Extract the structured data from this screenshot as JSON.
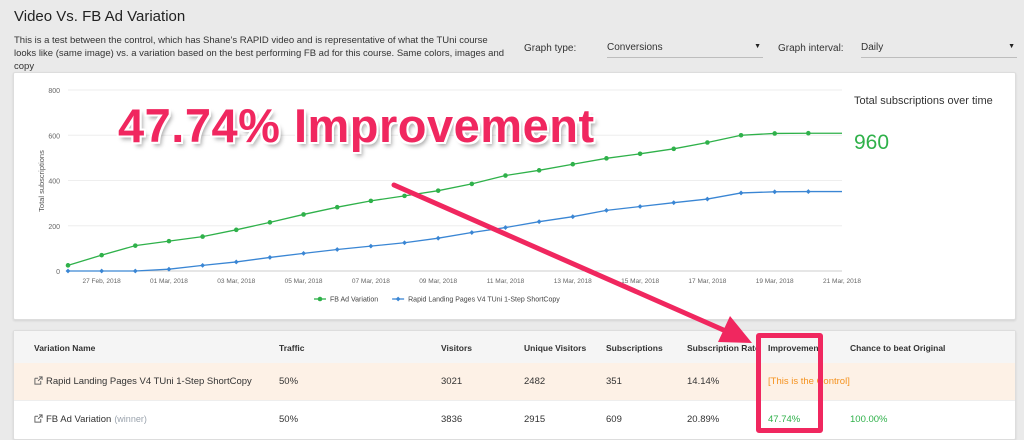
{
  "page": {
    "title": "Video Vs. FB Ad Variation",
    "description": "This is a test between the control, which has Shane's RAPID video and is representative of what the TUni course looks like (same image) vs. a variation based on the best performing FB ad for this course. Same colors, images and copy"
  },
  "controls": {
    "graph_type_label": "Graph type:",
    "graph_type_value": "Conversions",
    "graph_interval_label": "Graph interval:",
    "graph_interval_value": "Daily"
  },
  "side_panel": {
    "title": "Total subscriptions over time",
    "value": "960"
  },
  "annotation": {
    "headline": "47.74% Improvement"
  },
  "colors": {
    "green": "#2fb14a",
    "blue": "#3a86d4",
    "accent": "#f0275f",
    "orange": "#f5921e"
  },
  "chart_data": {
    "type": "line",
    "ylabel": "Total subscriptions",
    "ylim": [
      0,
      800
    ],
    "yticks": [
      0,
      200,
      400,
      600,
      800
    ],
    "x": [
      "26 Feb",
      "27 Feb",
      "28 Feb",
      "01 Mar",
      "02 Mar",
      "03 Mar",
      "04 Mar",
      "05 Mar",
      "06 Mar",
      "07 Mar",
      "08 Mar",
      "09 Mar",
      "10 Mar",
      "11 Mar",
      "12 Mar",
      "13 Mar",
      "14 Mar",
      "15 Mar",
      "16 Mar",
      "17 Mar",
      "18 Mar",
      "19 Mar",
      "20 Mar",
      "21 Mar"
    ],
    "xtick_labels": [
      "27 Feb, 2018",
      "01 Mar, 2018",
      "03 Mar, 2018",
      "05 Mar, 2018",
      "07 Mar, 2018",
      "09 Mar, 2018",
      "11 Mar, 2018",
      "13 Mar, 2018",
      "15 Mar, 2018",
      "17 Mar, 2018",
      "19 Mar, 2018",
      "21 Mar, 2018"
    ],
    "xtick_index": [
      1,
      3,
      5,
      7,
      9,
      11,
      13,
      15,
      17,
      19,
      21,
      23
    ],
    "series": [
      {
        "name": "FB Ad Variation",
        "color": "#2fb14a",
        "values": [
          25,
          70,
          112,
          132,
          152,
          182,
          215,
          250,
          282,
          310,
          332,
          355,
          385,
          422,
          445,
          472,
          498,
          518,
          540,
          568,
          600,
          608,
          609,
          609
        ]
      },
      {
        "name": "Rapid Landing Pages V4 TUni 1-Step ShortCopy",
        "color": "#3a86d4",
        "values": [
          0,
          0,
          0,
          8,
          25,
          40,
          60,
          78,
          95,
          110,
          125,
          145,
          170,
          192,
          218,
          240,
          268,
          285,
          302,
          318,
          345,
          350,
          351,
          351
        ]
      }
    ],
    "legend_position": "bottom"
  },
  "table": {
    "headers": [
      "Variation Name",
      "Traffic",
      "Visitors",
      "Unique Visitors",
      "Subscriptions",
      "Subscription Rate",
      "Improvement",
      "Chance to beat Original"
    ],
    "rows": [
      {
        "name": "Rapid Landing Pages V4 TUni 1-Step ShortCopy",
        "badge": "",
        "traffic": "50%",
        "visitors": "3021",
        "unique_visitors": "2482",
        "subscriptions": "351",
        "rate": "14.14%",
        "improvement": "[This is the Control]",
        "chance": ""
      },
      {
        "name": "FB Ad Variation",
        "badge": "(winner)",
        "traffic": "50%",
        "visitors": "3836",
        "unique_visitors": "2915",
        "subscriptions": "609",
        "rate": "20.89%",
        "improvement": "47.74%",
        "chance": "100.00%"
      }
    ]
  }
}
